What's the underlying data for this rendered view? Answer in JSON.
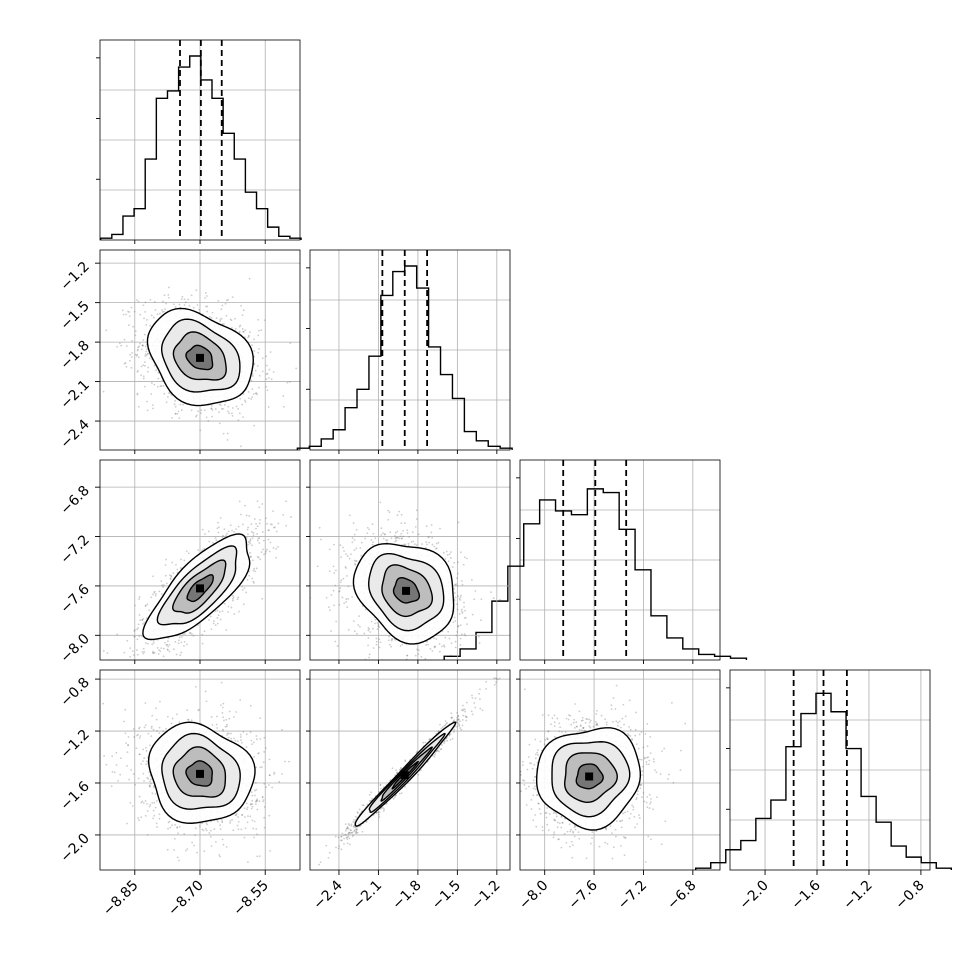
{
  "chart_data": {
    "type": "corner",
    "parameters": 4,
    "grid": true,
    "colors": {
      "line": "#000000",
      "grid": "#b0b0b0",
      "scatter": "#7a7a7a"
    },
    "axes": [
      {
        "index": 0,
        "range": [
          -8.93,
          -8.47
        ],
        "ticks": [
          -8.85,
          -8.7,
          -8.55
        ],
        "tick_labels": [
          "−8.85",
          "−8.70",
          "−8.55"
        ],
        "quantiles": [
          -8.746,
          -8.698,
          -8.65
        ]
      },
      {
        "index": 1,
        "range": [
          -2.62,
          -1.1
        ],
        "ticks": [
          -2.4,
          -2.1,
          -1.8,
          -1.5,
          -1.2
        ],
        "tick_labels": [
          "−2.4",
          "−2.1",
          "−1.8",
          "−1.5",
          "−1.2"
        ],
        "quantiles": [
          -2.07,
          -1.9,
          -1.73
        ]
      },
      {
        "index": 2,
        "range": [
          -8.2,
          -6.58
        ],
        "ticks": [
          -8.0,
          -7.6,
          -7.2,
          -6.8
        ],
        "tick_labels": [
          "−8.0",
          "−7.6",
          "−7.2",
          "−6.8"
        ],
        "quantiles": [
          -7.85,
          -7.59,
          -7.34
        ]
      },
      {
        "index": 3,
        "range": [
          -2.27,
          -0.73
        ],
        "ticks": [
          -2.0,
          -1.6,
          -1.2,
          -0.8
        ],
        "tick_labels": [
          "−2.0",
          "−1.6",
          "−1.2",
          "−0.8"
        ],
        "quantiles": [
          -1.78,
          -1.55,
          -1.37
        ]
      }
    ],
    "histograms": [
      {
        "param": 0,
        "counts": [
          0.01,
          0.03,
          0.13,
          0.17,
          0.44,
          0.77,
          0.81,
          0.94,
          1.0,
          0.87,
          0.77,
          0.58,
          0.44,
          0.26,
          0.17,
          0.07,
          0.02,
          0.01
        ]
      },
      {
        "param": 1,
        "counts": [
          0.01,
          0.02,
          0.06,
          0.11,
          0.23,
          0.33,
          0.51,
          0.84,
          0.97,
          1.0,
          0.88,
          0.56,
          0.41,
          0.28,
          0.1,
          0.05,
          0.02,
          0.01
        ]
      },
      {
        "param": 2,
        "counts": [
          0.02,
          0.06,
          0.15,
          0.32,
          0.51,
          0.74,
          0.87,
          0.81,
          0.79,
          0.93,
          0.91,
          0.71,
          0.49,
          0.24,
          0.12,
          0.06,
          0.03,
          0.02,
          0.01
        ]
      },
      {
        "param": 3,
        "counts": [
          0.01,
          0.04,
          0.11,
          0.16,
          0.28,
          0.38,
          0.67,
          0.85,
          0.96,
          0.86,
          0.66,
          0.4,
          0.26,
          0.13,
          0.07,
          0.04,
          0.01
        ]
      }
    ],
    "pairs": [
      {
        "x_param": 0,
        "y_param": 1,
        "center": [
          -8.7,
          -1.92
        ],
        "sx": 0.06,
        "sy": 0.18,
        "rho": -0.25
      },
      {
        "x_param": 0,
        "y_param": 2,
        "center": [
          -8.7,
          -7.62
        ],
        "sx": 0.06,
        "sy": 0.21,
        "rho": 0.75
      },
      {
        "x_param": 1,
        "y_param": 2,
        "center": [
          -1.89,
          -7.64
        ],
        "sx": 0.19,
        "sy": 0.2,
        "rho": -0.2
      },
      {
        "x_param": 0,
        "y_param": 3,
        "center": [
          -8.7,
          -1.53
        ],
        "sx": 0.06,
        "sy": 0.19,
        "rho": -0.1
      },
      {
        "x_param": 1,
        "y_param": 3,
        "center": [
          -1.9,
          -1.54
        ],
        "sx": 0.19,
        "sy": 0.2,
        "rho": 0.985
      },
      {
        "x_param": 2,
        "y_param": 3,
        "center": [
          -7.64,
          -1.55
        ],
        "sx": 0.21,
        "sy": 0.19,
        "rho": 0.05
      }
    ]
  }
}
